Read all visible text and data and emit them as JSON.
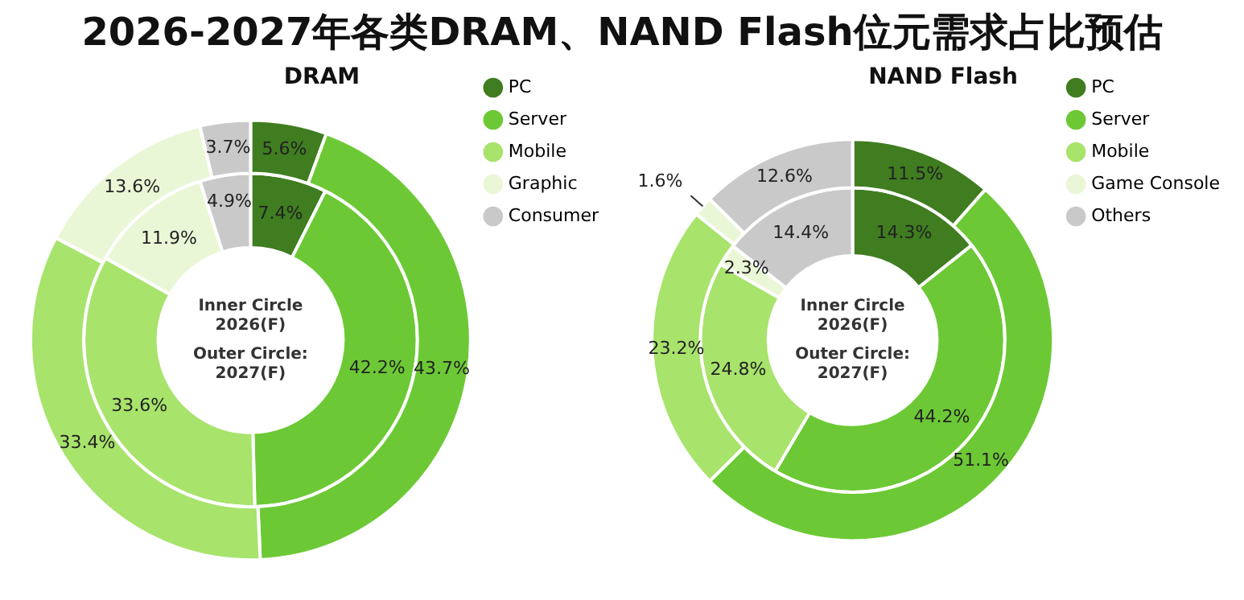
{
  "chart_data": [
    {
      "type": "donut",
      "title": "2026-2027年各类DRAM、NAND Flash位元需求占比预估",
      "subtitle": "DRAM",
      "categories": [
        "PC",
        "Server",
        "Mobile",
        "Graphic",
        "Consumer"
      ],
      "colors": [
        "#3f7d20",
        "#6cc935",
        "#a8e36c",
        "#eaf7d6",
        "#c9c9c9"
      ],
      "legend": "right",
      "series": [
        {
          "values": [
            5.6,
            43.7,
            33.4,
            13.6,
            3.7
          ],
          "value_labels": [
            "5.6%",
            "43.7%",
            "33.4%",
            "13.6%",
            "3.7%"
          ]
        },
        {
          "values": [
            7.4,
            42.2,
            33.6,
            11.9,
            4.9
          ],
          "value_labels": [
            "7.4%",
            "42.2%",
            "33.6%",
            "11.9%",
            "4.9%"
          ]
        }
      ],
      "annotations": [
        "Inner Circle 2026(F)",
        "Outer Circle: 2027(F)"
      ]
    },
    {
      "type": "donut",
      "subtitle": "NAND Flash",
      "categories": [
        "PC",
        "Server",
        "Mobile",
        "Game Console",
        "Others"
      ],
      "colors": [
        "#3f7d20",
        "#6cc935",
        "#a8e36c",
        "#eaf7d6",
        "#c9c9c9"
      ],
      "legend": "right",
      "series": [
        {
          "values": [
            11.5,
            51.1,
            23.2,
            1.6,
            12.6
          ],
          "value_labels": [
            "11.5%",
            "51.1%",
            "23.2%",
            "1.6%",
            "12.6%"
          ]
        },
        {
          "values": [
            14.3,
            44.2,
            24.8,
            2.3,
            14.4
          ],
          "value_labels": [
            "14.3%",
            "44.2%",
            "24.8%",
            "2.3%",
            "14.4%"
          ]
        }
      ],
      "annotations": [
        "Inner Circle 2026(F)",
        "Outer Circle: 2027(F)"
      ]
    }
  ]
}
